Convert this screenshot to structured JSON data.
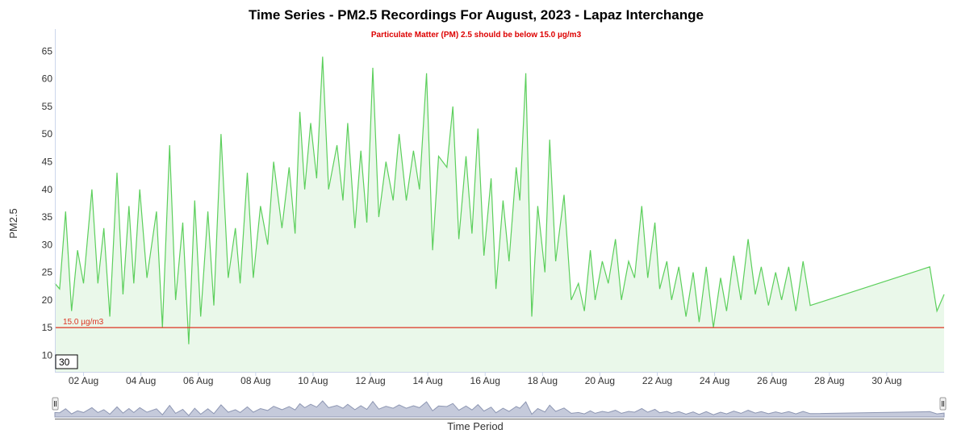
{
  "chart_data": {
    "type": "area",
    "title": "Time Series - PM2.5 Recordings For August, 2023 - Lapaz Interchange",
    "subtitle": "Particulate Matter (PM) 2.5 should be below 15.0 µg/m3",
    "ylabel": "PM2.5",
    "xlabel": "Time Period",
    "ylim": [
      7,
      69
    ],
    "xlim": [
      "2023-08-01",
      "2023-09-01"
    ],
    "y_ticks": [
      10,
      15,
      20,
      25,
      30,
      35,
      40,
      45,
      50,
      55,
      60,
      65
    ],
    "x_ticks": [
      "02 Aug",
      "04 Aug",
      "06 Aug",
      "08 Aug",
      "10 Aug",
      "12 Aug",
      "14 Aug",
      "16 Aug",
      "18 Aug",
      "20 Aug",
      "22 Aug",
      "24 Aug",
      "26 Aug",
      "28 Aug",
      "30 Aug"
    ],
    "threshold": {
      "value": 15.0,
      "label": "15.0 µg/m3",
      "color": "#dd3322"
    },
    "rolling_period": "30",
    "grid": false,
    "legend": "none",
    "colors": {
      "line": "#5ccf5c",
      "fill": "#eaf8ea",
      "threshold": "#dd3322",
      "subtitle": "#dd0000",
      "navigator": "#a3aac0"
    },
    "series": [
      {
        "values": [
          [
            "2023-08-01 00:00",
            23
          ],
          [
            "2023-08-01 04:00",
            22
          ],
          [
            "2023-08-01 09:00",
            36
          ],
          [
            "2023-08-01 14:00",
            18
          ],
          [
            "2023-08-01 19:00",
            29
          ],
          [
            "2023-08-02 00:00",
            23
          ],
          [
            "2023-08-02 07:00",
            40
          ],
          [
            "2023-08-02 12:00",
            23
          ],
          [
            "2023-08-02 17:00",
            33
          ],
          [
            "2023-08-02 22:00",
            17
          ],
          [
            "2023-08-03 04:00",
            43
          ],
          [
            "2023-08-03 09:00",
            21
          ],
          [
            "2023-08-03 14:00",
            37
          ],
          [
            "2023-08-03 18:00",
            23
          ],
          [
            "2023-08-03 23:00",
            40
          ],
          [
            "2023-08-04 05:00",
            24
          ],
          [
            "2023-08-04 13:00",
            36
          ],
          [
            "2023-08-04 18:00",
            15
          ],
          [
            "2023-08-05 00:00",
            48
          ],
          [
            "2023-08-05 05:00",
            20
          ],
          [
            "2023-08-05 11:00",
            34
          ],
          [
            "2023-08-05 16:00",
            12
          ],
          [
            "2023-08-05 21:00",
            38
          ],
          [
            "2023-08-06 02:00",
            17
          ],
          [
            "2023-08-06 08:00",
            36
          ],
          [
            "2023-08-06 13:00",
            19
          ],
          [
            "2023-08-06 19:00",
            50
          ],
          [
            "2023-08-07 01:00",
            24
          ],
          [
            "2023-08-07 07:00",
            33
          ],
          [
            "2023-08-07 11:00",
            23
          ],
          [
            "2023-08-07 17:00",
            43
          ],
          [
            "2023-08-07 22:00",
            24
          ],
          [
            "2023-08-08 04:00",
            37
          ],
          [
            "2023-08-08 10:00",
            30
          ],
          [
            "2023-08-08 15:00",
            45
          ],
          [
            "2023-08-08 22:00",
            33
          ],
          [
            "2023-08-09 04:00",
            44
          ],
          [
            "2023-08-09 09:00",
            32
          ],
          [
            "2023-08-09 13:00",
            54
          ],
          [
            "2023-08-09 17:00",
            40
          ],
          [
            "2023-08-09 22:00",
            52
          ],
          [
            "2023-08-10 03:00",
            42
          ],
          [
            "2023-08-10 08:00",
            64
          ],
          [
            "2023-08-10 13:00",
            40
          ],
          [
            "2023-08-10 20:00",
            48
          ],
          [
            "2023-08-11 01:00",
            38
          ],
          [
            "2023-08-11 05:00",
            52
          ],
          [
            "2023-08-11 11:00",
            33
          ],
          [
            "2023-08-11 16:00",
            47
          ],
          [
            "2023-08-11 21:00",
            34
          ],
          [
            "2023-08-12 02:00",
            62
          ],
          [
            "2023-08-12 07:00",
            35
          ],
          [
            "2023-08-12 13:00",
            45
          ],
          [
            "2023-08-12 19:00",
            38
          ],
          [
            "2023-08-13 00:00",
            50
          ],
          [
            "2023-08-13 06:00",
            38
          ],
          [
            "2023-08-13 12:00",
            47
          ],
          [
            "2023-08-13 17:00",
            40
          ],
          [
            "2023-08-13 23:00",
            61
          ],
          [
            "2023-08-14 04:00",
            29
          ],
          [
            "2023-08-14 09:00",
            46
          ],
          [
            "2023-08-14 16:00",
            44
          ],
          [
            "2023-08-14 21:00",
            55
          ],
          [
            "2023-08-15 02:00",
            31
          ],
          [
            "2023-08-15 08:00",
            46
          ],
          [
            "2023-08-15 13:00",
            32
          ],
          [
            "2023-08-15 18:00",
            51
          ],
          [
            "2023-08-15 23:00",
            28
          ],
          [
            "2023-08-16 05:00",
            42
          ],
          [
            "2023-08-16 09:00",
            22
          ],
          [
            "2023-08-16 15:00",
            38
          ],
          [
            "2023-08-16 20:00",
            27
          ],
          [
            "2023-08-17 02:00",
            44
          ],
          [
            "2023-08-17 05:00",
            38
          ],
          [
            "2023-08-17 10:00",
            61
          ],
          [
            "2023-08-17 15:00",
            17
          ],
          [
            "2023-08-17 20:00",
            37
          ],
          [
            "2023-08-18 02:00",
            25
          ],
          [
            "2023-08-18 06:00",
            49
          ],
          [
            "2023-08-18 11:00",
            27
          ],
          [
            "2023-08-18 18:00",
            39
          ],
          [
            "2023-08-19 00:00",
            20
          ],
          [
            "2023-08-19 06:00",
            23
          ],
          [
            "2023-08-19 11:00",
            18
          ],
          [
            "2023-08-19 16:00",
            29
          ],
          [
            "2023-08-19 20:00",
            20
          ],
          [
            "2023-08-20 02:00",
            27
          ],
          [
            "2023-08-20 07:00",
            23
          ],
          [
            "2023-08-20 13:00",
            31
          ],
          [
            "2023-08-20 18:00",
            20
          ],
          [
            "2023-08-21 00:00",
            27
          ],
          [
            "2023-08-21 05:00",
            24
          ],
          [
            "2023-08-21 11:00",
            37
          ],
          [
            "2023-08-21 16:00",
            24
          ],
          [
            "2023-08-21 22:00",
            34
          ],
          [
            "2023-08-22 02:00",
            22
          ],
          [
            "2023-08-22 08:00",
            27
          ],
          [
            "2023-08-22 12:00",
            20
          ],
          [
            "2023-08-22 18:00",
            26
          ],
          [
            "2023-08-23 00:00",
            17
          ],
          [
            "2023-08-23 06:00",
            25
          ],
          [
            "2023-08-23 11:00",
            16
          ],
          [
            "2023-08-23 17:00",
            26
          ],
          [
            "2023-08-23 23:00",
            15
          ],
          [
            "2023-08-24 05:00",
            24
          ],
          [
            "2023-08-24 10:00",
            18
          ],
          [
            "2023-08-24 16:00",
            28
          ],
          [
            "2023-08-24 22:00",
            20
          ],
          [
            "2023-08-25 04:00",
            31
          ],
          [
            "2023-08-25 10:00",
            21
          ],
          [
            "2023-08-25 15:00",
            26
          ],
          [
            "2023-08-25 21:00",
            19
          ],
          [
            "2023-08-26 03:00",
            25
          ],
          [
            "2023-08-26 08:00",
            20
          ],
          [
            "2023-08-26 14:00",
            26
          ],
          [
            "2023-08-26 20:00",
            18
          ],
          [
            "2023-08-27 02:00",
            27
          ],
          [
            "2023-08-27 08:00",
            19
          ],
          [
            "2023-08-31 12:00",
            26
          ],
          [
            "2023-08-31 18:00",
            18
          ],
          [
            "2023-09-01 00:00",
            21
          ]
        ]
      }
    ]
  }
}
